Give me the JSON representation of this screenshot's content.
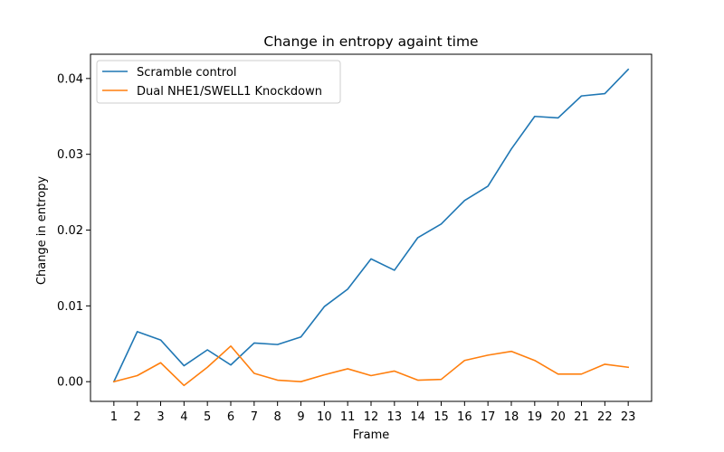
{
  "chart_data": {
    "type": "line",
    "title": "Change in entropy againt time",
    "xlabel": "Frame",
    "ylabel": "Change in entropy",
    "x": [
      1,
      2,
      3,
      4,
      5,
      6,
      7,
      8,
      9,
      10,
      11,
      12,
      13,
      14,
      15,
      16,
      17,
      18,
      19,
      20,
      21,
      22,
      23
    ],
    "x_tick_labels": [
      "1",
      "2",
      "3",
      "4",
      "5",
      "6",
      "7",
      "8",
      "9",
      "10",
      "11",
      "12",
      "13",
      "14",
      "15",
      "16",
      "17",
      "18",
      "19",
      "20",
      "21",
      "22",
      "23"
    ],
    "y_ticks": [
      0.0,
      0.01,
      0.02,
      0.03,
      0.04
    ],
    "y_tick_labels": [
      "0.00",
      "0.01",
      "0.02",
      "0.03",
      "0.04"
    ],
    "xlim": [
      0,
      24
    ],
    "ylim": [
      -0.0026,
      0.0432
    ],
    "grid": false,
    "legend_position": "top-left",
    "series": [
      {
        "name": "Scramble control",
        "color": "#1f77b4",
        "values": [
          0.0,
          0.0066,
          0.0055,
          0.0021,
          0.0042,
          0.0022,
          0.0051,
          0.0049,
          0.0059,
          0.0099,
          0.0122,
          0.0162,
          0.0147,
          0.019,
          0.0208,
          0.0239,
          0.0258,
          0.0307,
          0.035,
          0.0348,
          0.0377,
          0.038,
          0.0412
        ]
      },
      {
        "name": "Dual NHE1/SWELL1 Knockdown",
        "color": "#ff7f0e",
        "values": [
          0.0,
          0.0008,
          0.0025,
          -0.0005,
          0.0019,
          0.0047,
          0.0011,
          0.0002,
          0.0,
          0.0009,
          0.0017,
          0.0008,
          0.0014,
          0.0002,
          0.0003,
          0.0028,
          0.0035,
          0.004,
          0.0028,
          0.001,
          0.001,
          0.0023,
          0.0019
        ]
      }
    ]
  }
}
